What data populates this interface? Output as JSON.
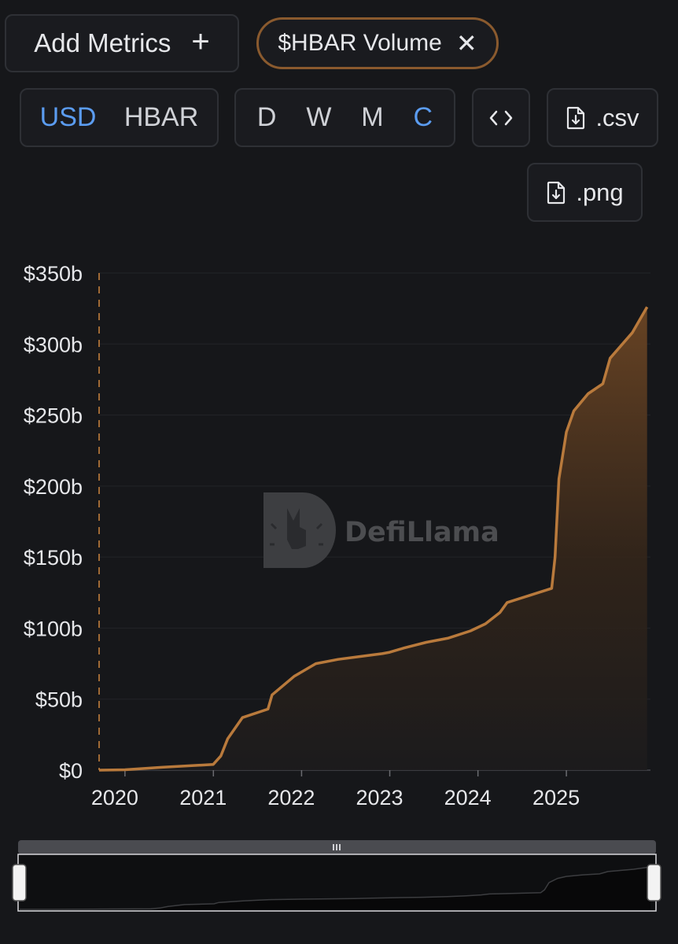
{
  "toolbar": {
    "add_metrics_label": "Add Metrics",
    "add_metrics_icon": "plus-icon",
    "metric_chip_label": "$HBAR Volume",
    "metric_chip_close_icon": "close-icon",
    "currency_options": [
      "USD",
      "HBAR"
    ],
    "currency_selected": "USD",
    "period_options": [
      "D",
      "W",
      "M",
      "C"
    ],
    "period_selected": "C",
    "embed_icon": "code-brackets-icon",
    "csv_label": ".csv",
    "png_label": ".png",
    "download_icon": "file-download-icon"
  },
  "watermark": {
    "brand_text": "DefiLlama",
    "icon": "llama-logo-icon"
  },
  "colors": {
    "background": "#16171a",
    "accent_line": "#b97a3c",
    "active_toggle": "#5b9cf0",
    "chip_border": "#8a5a2e"
  },
  "chart_data": {
    "type": "area",
    "title": "",
    "series": [
      {
        "name": "$HBAR Volume",
        "x": [
          "2019-09-16",
          "2020-01-01",
          "2020-06-01",
          "2020-12-31",
          "2021-02-01",
          "2021-03-01",
          "2021-05-01",
          "2021-08-15",
          "2021-09-01",
          "2021-12-01",
          "2022-03-01",
          "2022-06-01",
          "2022-09-01",
          "2022-12-01",
          "2023-01-01",
          "2023-03-01",
          "2023-06-01",
          "2023-09-01",
          "2023-12-01",
          "2024-02-01",
          "2024-04-01",
          "2024-05-01",
          "2024-08-01",
          "2024-11-01",
          "2024-11-15",
          "2024-12-01",
          "2025-01-01",
          "2025-02-01",
          "2025-04-01",
          "2025-06-01",
          "2025-07-01",
          "2025-10-01",
          "2025-12-01"
        ],
        "y": [
          0,
          0.3,
          2,
          4,
          10,
          22,
          37,
          43,
          53,
          66,
          75,
          78,
          80,
          82,
          83,
          86,
          90,
          93,
          98,
          103,
          111,
          118,
          123,
          128,
          150,
          205,
          238,
          253,
          265,
          272,
          290,
          308,
          326
        ]
      }
    ],
    "y_tick_labels": [
      "$0",
      "$50b",
      "$100b",
      "$150b",
      "$200b",
      "$250b",
      "$300b",
      "$350b"
    ],
    "y_unit": "USD (billions)",
    "ylim": [
      0,
      350
    ],
    "x_tick_labels": [
      "2020",
      "2021",
      "2022",
      "2023",
      "2024",
      "2025"
    ],
    "xlim": [
      "2019-09-16",
      "2025-12-15"
    ],
    "grid": "horizontal",
    "legend": "none",
    "brush_navigator": true
  }
}
